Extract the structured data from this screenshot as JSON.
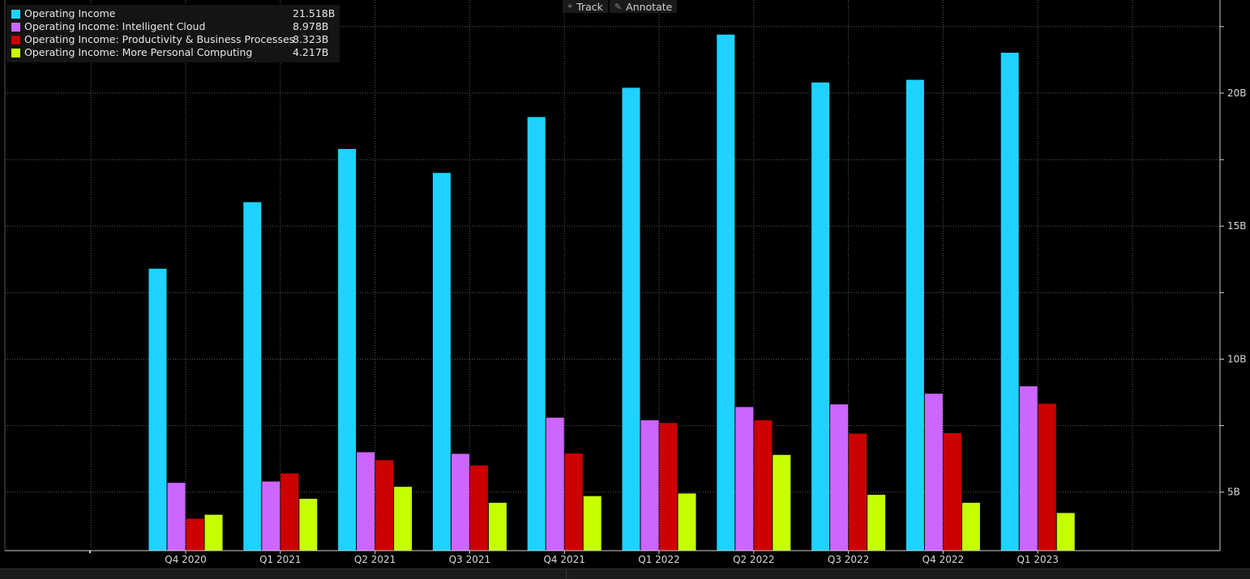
{
  "toolbar": {
    "track_label": "Track",
    "annotate_label": "Annotate",
    "track_icon": "crosshair-icon",
    "annotate_icon": "pencil-icon"
  },
  "legend": [
    {
      "name": "Operating Income",
      "value": "21.518B",
      "color": "#1ed3ff"
    },
    {
      "name": "Operating Income: Intelligent Cloud",
      "value": "8.978B",
      "color": "#cc66ff"
    },
    {
      "name": "Operating Income: Productivity & Business Processes",
      "value": "8.323B",
      "color": "#cc0000"
    },
    {
      "name": "Operating Income: More Personal Computing",
      "value": "4.217B",
      "color": "#c6ff00"
    }
  ],
  "chart_data": {
    "type": "bar",
    "categories": [
      "Q4 2020",
      "Q1 2021",
      "Q2 2021",
      "Q3 2021",
      "Q4 2021",
      "Q1 2022",
      "Q2 2022",
      "Q3 2022",
      "Q4 2022",
      "Q1 2023"
    ],
    "series": [
      {
        "name": "Operating Income",
        "color": "#1ed3ff",
        "values": [
          13.4,
          15.9,
          17.9,
          17.0,
          19.1,
          20.2,
          22.2,
          20.4,
          20.5,
          21.518
        ]
      },
      {
        "name": "Operating Income: Intelligent Cloud",
        "color": "#cc66ff",
        "values": [
          5.35,
          5.4,
          6.5,
          6.44,
          7.8,
          7.7,
          8.2,
          8.3,
          8.7,
          8.978
        ]
      },
      {
        "name": "Operating Income: Productivity & Business Processes",
        "color": "#cc0000",
        "values": [
          4.0,
          5.7,
          6.2,
          6.0,
          6.45,
          7.6,
          7.7,
          7.2,
          7.22,
          8.323
        ]
      },
      {
        "name": "Operating Income: More Personal Computing",
        "color": "#c6ff00",
        "values": [
          4.15,
          4.75,
          5.2,
          4.6,
          4.85,
          4.95,
          6.4,
          4.9,
          4.6,
          4.217
        ]
      }
    ],
    "ylim": [
      2.8,
      23.5
    ],
    "yticks": [
      5,
      10,
      15,
      20
    ],
    "ytick_labels": [
      "5B",
      "10B",
      "15B",
      "20B"
    ],
    "grid": true,
    "legend_position": "top-left",
    "xlabel": "",
    "ylabel": ""
  }
}
